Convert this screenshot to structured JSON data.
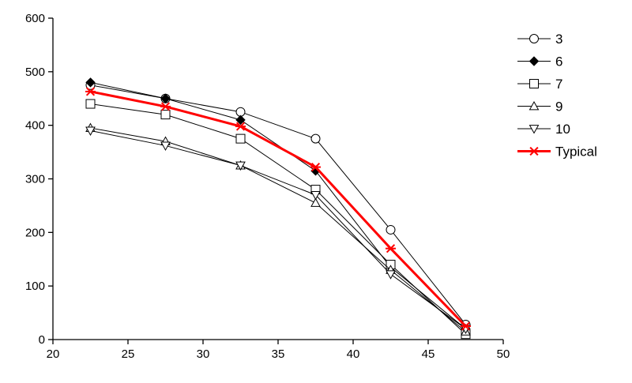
{
  "chart_data": {
    "type": "line",
    "title": "",
    "xlabel": "",
    "ylabel": "",
    "xlim": [
      20,
      50
    ],
    "ylim": [
      0,
      600
    ],
    "x_ticks": [
      20,
      25,
      30,
      35,
      40,
      45,
      50
    ],
    "y_ticks": [
      0,
      100,
      200,
      300,
      400,
      500,
      600
    ],
    "x_tick_labels": [
      "20",
      "25",
      "30",
      "35",
      "40",
      "45",
      "50"
    ],
    "y_tick_labels": [
      "0",
      "100",
      "200",
      "300",
      "400",
      "500",
      "600"
    ],
    "grid": false,
    "legend_position": "top-right",
    "x": [
      22.5,
      27.5,
      32.5,
      37.5,
      42.5,
      47.5
    ],
    "series": [
      {
        "name": "3",
        "marker": "circle-open",
        "color": "#000000",
        "values": [
          475,
          450,
          425,
          375,
          205,
          28
        ]
      },
      {
        "name": "6",
        "marker": "diamond-filled",
        "color": "#000000",
        "values": [
          480,
          450,
          410,
          315,
          135,
          20
        ]
      },
      {
        "name": "7",
        "marker": "square-open",
        "color": "#000000",
        "values": [
          440,
          420,
          375,
          280,
          140,
          10
        ]
      },
      {
        "name": "9",
        "marker": "triangle-up-open",
        "color": "#000000",
        "values": [
          395,
          370,
          325,
          255,
          130,
          15
        ]
      },
      {
        "name": "10",
        "marker": "triangle-down-open",
        "color": "#000000",
        "values": [
          390,
          362,
          325,
          270,
          122,
          20
        ]
      },
      {
        "name": "Typical",
        "marker": "asterisk",
        "color": "#ff0000",
        "values": [
          463,
          435,
          398,
          322,
          170,
          25
        ]
      }
    ]
  }
}
